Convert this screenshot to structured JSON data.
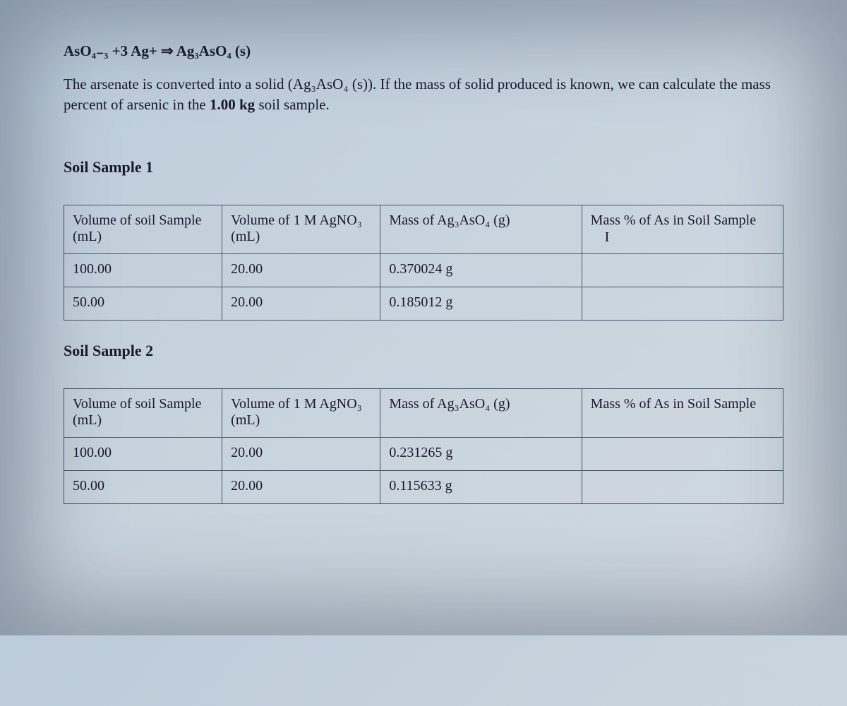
{
  "equation": "AsO₄₋₃ +3 Ag+ ⇒ Ag₃AsO₄ (s)",
  "description_part1": "The arsenate is converted into a solid (Ag₃AsO₄ (s)). If the mass of solid produced is known, we can calculate the mass percent of arsenic in the ",
  "description_bold": "1.00 kg",
  "description_part2": " soil sample.",
  "sample1_title": "Soil Sample 1",
  "sample2_title": "Soil Sample 2",
  "table_headers": {
    "col1": "Volume of soil Sample (mL)",
    "col2": "Volume of 1 M AgNO₃ (mL)",
    "col3": "Mass of Ag₃AsO₄ (g)",
    "col4": "Mass % of As in Soil Sample"
  },
  "cursor_symbol": "I",
  "sample1_rows": [
    {
      "vol_soil": "100.00",
      "vol_agno3": "20.00",
      "mass": "0.370024 g",
      "mass_pct": ""
    },
    {
      "vol_soil": "50.00",
      "vol_agno3": "20.00",
      "mass": "0.185012 g",
      "mass_pct": ""
    }
  ],
  "sample2_rows": [
    {
      "vol_soil": "100.00",
      "vol_agno3": "20.00",
      "mass": "0.231265 g",
      "mass_pct": ""
    },
    {
      "vol_soil": "50.00",
      "vol_agno3": "20.00",
      "mass": "0.115633 g",
      "mass_pct": ""
    }
  ],
  "colors": {
    "text": "#1a1a2e",
    "border": "#4a5568",
    "bg_gradient_start": "#b8c8d8",
    "bg_gradient_end": "#d0d8e0"
  },
  "typography": {
    "body_font": "Times New Roman",
    "equation_fontsize": 21,
    "description_fontsize": 21,
    "section_title_fontsize": 22,
    "cell_fontsize": 20
  },
  "layout": {
    "page_padding_top": 60,
    "page_padding_sides": 90,
    "col_widths_pct": [
      22,
      22,
      28,
      28
    ],
    "border_width": 1.5
  }
}
